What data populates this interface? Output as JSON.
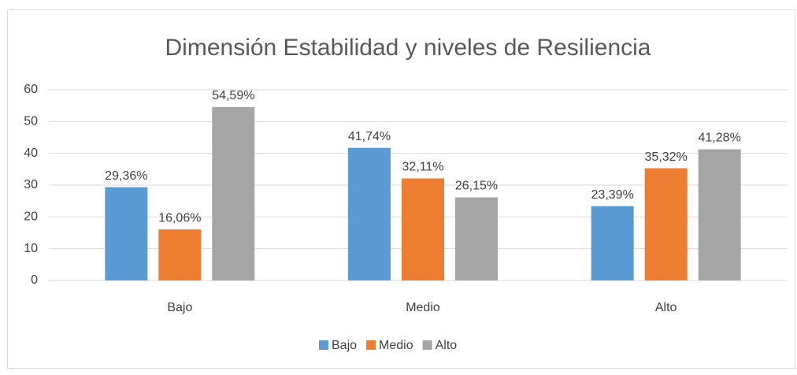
{
  "chart_data": {
    "type": "bar",
    "title": "Dimensión Estabilidad y niveles de Resiliencia",
    "categories": [
      "Bajo",
      "Medio",
      "Alto"
    ],
    "series": [
      {
        "name": "Bajo",
        "color": "#5b9bd5",
        "values": [
          29.36,
          41.74,
          23.39
        ],
        "value_labels": [
          "29,36%",
          "41,74%",
          "23,39%"
        ]
      },
      {
        "name": "Medio",
        "color": "#ed7d31",
        "values": [
          16.06,
          32.11,
          35.32
        ],
        "value_labels": [
          "16,06%",
          "32,11%",
          "35,32%"
        ]
      },
      {
        "name": "Alto",
        "color": "#a5a5a5",
        "values": [
          54.59,
          26.15,
          41.28
        ],
        "value_labels": [
          "54,59%",
          "26,15%",
          "41,28%"
        ]
      }
    ],
    "ylim": [
      0,
      60
    ],
    "yticks": [
      0,
      10,
      20,
      30,
      40,
      50,
      60
    ],
    "grid": true,
    "legend": "bottom"
  }
}
